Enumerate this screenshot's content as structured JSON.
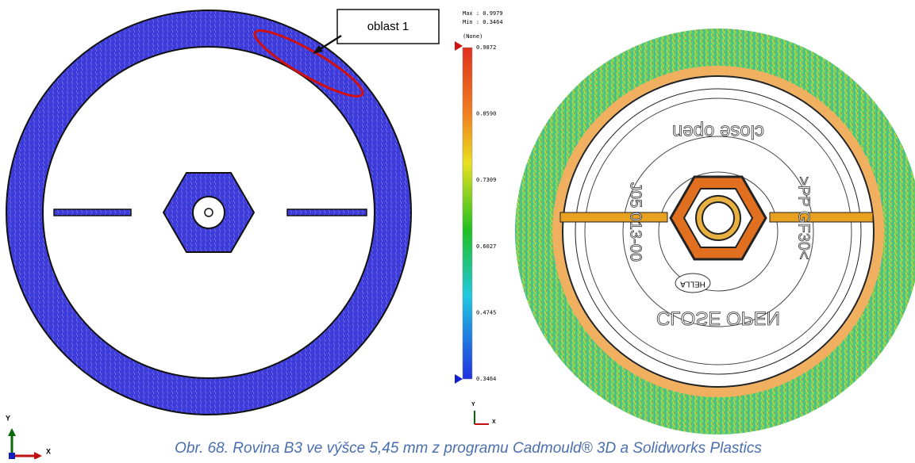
{
  "callout": {
    "label": "oblast 1"
  },
  "legend": {
    "max": "Max : 0.9979",
    "min": "Min : 0.3464",
    "unit": "(None)",
    "scale_labels": [
      "0.9872",
      "0.8590",
      "0.7309",
      "0.6027",
      "0.4745",
      "0.3464"
    ]
  },
  "axes_left": {
    "y": "Y",
    "x": "X"
  },
  "axes_small": {
    "y": "Y",
    "x": "X"
  },
  "part_text": {
    "top": "close open",
    "bottom": "CLOSE OPEN",
    "left": "J05 013-00",
    "right": ">PP GF30<",
    "logo": "HELLA"
  },
  "caption": "Obr. 68. Rovina B3 ve výšce 5,45 mm z programu Cadmould® 3D a  Solidworks Plastics"
}
